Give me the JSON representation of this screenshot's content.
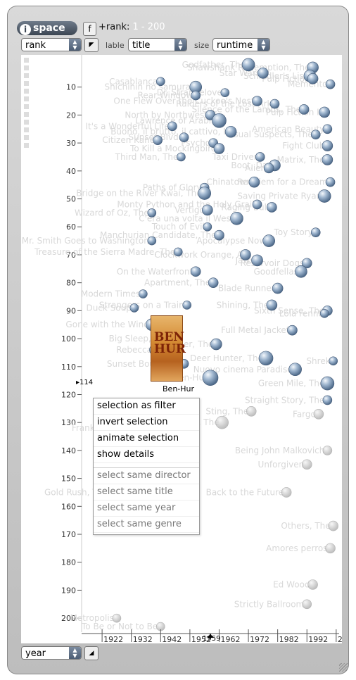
{
  "app": {
    "logo_text": "space",
    "logo_icon": "i",
    "filter_button": "f",
    "range_label": "+rank:",
    "range_value": "1 - 200"
  },
  "controls": {
    "y_axis_select": "rank",
    "label_caption": "lable",
    "label_select": "title",
    "size_caption": "size",
    "size_select": "runtime",
    "x_axis_select": "year"
  },
  "selection": {
    "title": "Ben-Hur",
    "rank": "114",
    "year": "1959",
    "poster_text": "BEN HUR"
  },
  "context_menu": {
    "items": [
      "selection as filter",
      "invert selection",
      "animate selection",
      "show details"
    ],
    "dim_items": [
      "select same director",
      "select same title",
      "select same year",
      "select same genre"
    ]
  },
  "chart_data": {
    "type": "scatter",
    "xlabel": "year",
    "ylabel": "rank",
    "x_ticks": [
      1922,
      1932,
      1942,
      1952,
      1962,
      1972,
      1982,
      1992,
      2002
    ],
    "y_ticks": [
      10,
      20,
      30,
      40,
      50,
      60,
      70,
      80,
      90,
      100,
      110,
      120,
      130,
      140,
      150,
      160,
      170,
      180,
      190,
      200
    ],
    "xlim": [
      1915,
      2003
    ],
    "ylim": [
      0,
      205
    ],
    "points": [
      {
        "title": "Godfather, The",
        "x": 1972,
        "y": 2,
        "size": 14
      },
      {
        "title": "Shawshank Redemption, The",
        "x": 1994,
        "y": 3,
        "size": 12
      },
      {
        "title": "Star Wars",
        "x": 1977,
        "y": 5,
        "size": 11
      },
      {
        "title": "Schindler's List",
        "x": 1993,
        "y": 6,
        "size": 13
      },
      {
        "title": "Pulp Fiction",
        "x": 1994,
        "y": 7,
        "size": 11
      },
      {
        "title": "Memento",
        "x": 2000,
        "y": 9,
        "size": 9
      },
      {
        "title": "Casablanca",
        "x": 1942,
        "y": 8,
        "size": 8
      },
      {
        "title": "Shichinin no samurai",
        "x": 1954,
        "y": 10,
        "size": 13
      },
      {
        "title": "Dr. Strangelove",
        "x": 1964,
        "y": 12,
        "size": 8
      },
      {
        "title": "Rear Window",
        "x": 1954,
        "y": 13,
        "size": 9
      },
      {
        "title": "One Flew Over the Cuckoo's Nest",
        "x": 1975,
        "y": 15,
        "size": 10
      },
      {
        "title": "Raiders of the Lost Ark",
        "x": 1981,
        "y": 16,
        "size": 9
      },
      {
        "title": "Silence of the Lambs, The",
        "x": 1991,
        "y": 18,
        "size": 10
      },
      {
        "title": "Pulp Fiction II",
        "x": 1998,
        "y": 19,
        "size": 11
      },
      {
        "title": "North by Northwest",
        "x": 1959,
        "y": 20,
        "size": 10
      },
      {
        "title": "Lawrence of Arabia",
        "x": 1962,
        "y": 22,
        "size": 16
      },
      {
        "title": "It's a Wonderful Life",
        "x": 1946,
        "y": 24,
        "size": 9
      },
      {
        "title": "Buono, il brutto, il cattivo, Il",
        "x": 1966,
        "y": 26,
        "size": 12
      },
      {
        "title": "American Beauty",
        "x": 1999,
        "y": 25,
        "size": 9
      },
      {
        "title": "Sunset Blvd.",
        "x": 1950,
        "y": 28,
        "size": 9
      },
      {
        "title": "Usual Suspects, The",
        "x": 1995,
        "y": 27,
        "size": 9
      },
      {
        "title": "Citizen Kane",
        "x": 1941,
        "y": 29,
        "size": 9
      },
      {
        "title": "Psycho",
        "x": 1960,
        "y": 30,
        "size": 9
      },
      {
        "title": "To Kill a Mockingbird",
        "x": 1962,
        "y": 32,
        "size": 11
      },
      {
        "title": "Fight Club",
        "x": 1999,
        "y": 31,
        "size": 11
      },
      {
        "title": "Third Man, The",
        "x": 1949,
        "y": 35,
        "size": 8
      },
      {
        "title": "Taxi Driver",
        "x": 1976,
        "y": 35,
        "size": 9
      },
      {
        "title": "Matrix, The",
        "x": 1999,
        "y": 36,
        "size": 11
      },
      {
        "title": "Boot, Das",
        "x": 1981,
        "y": 38,
        "size": 12
      },
      {
        "title": "Alien",
        "x": 1979,
        "y": 39,
        "size": 10
      },
      {
        "title": "Chinatown",
        "x": 1974,
        "y": 44,
        "size": 11
      },
      {
        "title": "Requiem for a Dream",
        "x": 2000,
        "y": 44,
        "size": 9
      },
      {
        "title": "Paths of Glory",
        "x": 1957,
        "y": 46,
        "size": 9
      },
      {
        "title": "Bridge on the River Kwai, The",
        "x": 1957,
        "y": 48,
        "size": 14
      },
      {
        "title": "Saving Private Ryan",
        "x": 1998,
        "y": 49,
        "size": 14
      },
      {
        "title": "Monty Python and the Holy Grail",
        "x": 1975,
        "y": 52,
        "size": 9
      },
      {
        "title": "Raging Bull",
        "x": 1980,
        "y": 53,
        "size": 10
      },
      {
        "title": "Vertigo",
        "x": 1958,
        "y": 54,
        "size": 11
      },
      {
        "title": "Wizard of Oz, The",
        "x": 1939,
        "y": 55,
        "size": 8
      },
      {
        "title": "C'era una volta il West",
        "x": 1968,
        "y": 57,
        "size": 14
      },
      {
        "title": "Touch of Evil",
        "x": 1958,
        "y": 60,
        "size": 8
      },
      {
        "title": "Manchurian Candidate, The",
        "x": 1962,
        "y": 63,
        "size": 10
      },
      {
        "title": "Toy Story",
        "x": 1995,
        "y": 62,
        "size": 9
      },
      {
        "title": "Mr. Smith Goes to Washington",
        "x": 1939,
        "y": 65,
        "size": 8
      },
      {
        "title": "Apocalypse Now",
        "x": 1979,
        "y": 65,
        "size": 13
      },
      {
        "title": "Treasure of the Sierra Madre, The",
        "x": 1948,
        "y": 69,
        "size": 8
      },
      {
        "title": "Clockwork Orange, A",
        "x": 1971,
        "y": 70,
        "size": 11
      },
      {
        "title": "Jaws",
        "x": 1975,
        "y": 72,
        "size": 12
      },
      {
        "title": "Reservoir Dogs",
        "x": 1992,
        "y": 73,
        "size": 10
      },
      {
        "title": "On the Waterfront",
        "x": 1954,
        "y": 76,
        "size": 10
      },
      {
        "title": "Goodfellas",
        "x": 1990,
        "y": 76,
        "size": 13
      },
      {
        "title": "Apartment, The",
        "x": 1960,
        "y": 80,
        "size": 10
      },
      {
        "title": "Blade Runner",
        "x": 1982,
        "y": 82,
        "size": 11
      },
      {
        "title": "Modern Times",
        "x": 1936,
        "y": 84,
        "size": 8
      },
      {
        "title": "Shining, The",
        "x": 1980,
        "y": 88,
        "size": 11
      },
      {
        "title": "Strangers on a Train",
        "x": 1951,
        "y": 88,
        "size": 8
      },
      {
        "title": "Duck Soup",
        "x": 1933,
        "y": 89,
        "size": 8
      },
      {
        "title": "Sixth Sense, The",
        "x": 1999,
        "y": 90,
        "size": 10
      },
      {
        "title": "Lola rennt",
        "x": 1998,
        "y": 91,
        "size": 8
      },
      {
        "title": "Gone with the Wind",
        "x": 1939,
        "y": 95,
        "size": 13
      },
      {
        "title": "Full Metal Jacket",
        "x": 1987,
        "y": 97,
        "size": 10
      },
      {
        "title": "Big Sleep, The",
        "x": 1946,
        "y": 100,
        "size": 10
      },
      {
        "title": "Hustler, The",
        "x": 1961,
        "y": 102,
        "size": 12
      },
      {
        "title": "Rebecca",
        "x": 1940,
        "y": 104,
        "size": 11
      },
      {
        "title": "Deer Hunter, The",
        "x": 1978,
        "y": 107,
        "size": 16
      },
      {
        "title": "Shrek",
        "x": 2001,
        "y": 108,
        "size": 8
      },
      {
        "title": "Sunset Boulevard",
        "x": 1950,
        "y": 109,
        "size": 9
      },
      {
        "title": "Nuovo cinema Paradiso",
        "x": 1988,
        "y": 111,
        "size": 14
      },
      {
        "title": "Green Mile, The",
        "x": 1999,
        "y": 116,
        "size": 15
      },
      {
        "title": "Ben-Hur",
        "x": 1959,
        "y": 114,
        "size": 18
      },
      {
        "title": "Straight Story, The",
        "x": 1999,
        "y": 122,
        "size": 9
      },
      {
        "title": "Fargo",
        "x": 1996,
        "y": 127,
        "size": 10
      },
      {
        "title": "Sting, The",
        "x": 1973,
        "y": 126,
        "size": 10
      },
      {
        "title": "Great Escape, The",
        "x": 1963,
        "y": 130,
        "size": 14
      },
      {
        "title": "Frankenstein",
        "x": 1931,
        "y": 132,
        "size": 8
      },
      {
        "title": "Gold Rush, The",
        "x": 1925,
        "y": 155,
        "size": 8
      },
      {
        "title": "Metropolis",
        "x": 1927,
        "y": 200,
        "size": 8
      },
      {
        "title": "Being John Malkovich",
        "x": 1999,
        "y": 140,
        "size": 9
      },
      {
        "title": "Unforgiven",
        "x": 1992,
        "y": 145,
        "size": 10
      },
      {
        "title": "Back to the Future",
        "x": 1985,
        "y": 155,
        "size": 10
      },
      {
        "title": "Others, The",
        "x": 2001,
        "y": 167,
        "size": 10
      },
      {
        "title": "Amores perros",
        "x": 2000,
        "y": 175,
        "size": 10
      },
      {
        "title": "Ed Wood",
        "x": 1994,
        "y": 188,
        "size": 10
      },
      {
        "title": "Strictly Ballroom",
        "x": 1992,
        "y": 195,
        "size": 9
      },
      {
        "title": "To Be or Not to Be",
        "x": 1942,
        "y": 203,
        "size": 8
      }
    ]
  }
}
